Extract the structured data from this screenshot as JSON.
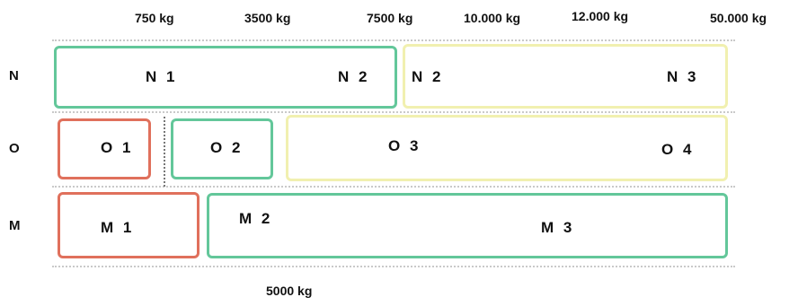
{
  "axis": {
    "top_ticks": [
      "750 kg",
      "3500 kg",
      "7500 kg",
      "10.000 kg",
      "12.000 kg",
      "50.000 kg"
    ],
    "bottom_tick": "5000 kg"
  },
  "rows": [
    {
      "label": "N",
      "classes": [
        "N 1",
        "N 2",
        "N 2",
        "N 3"
      ]
    },
    {
      "label": "O",
      "classes": [
        "O 1",
        "O 2",
        "O 3",
        "O 4"
      ]
    },
    {
      "label": "M",
      "classes": [
        "M 1",
        "M 2",
        "M 3"
      ]
    }
  ],
  "colors": {
    "green": "#63c79a",
    "red": "#e0705c",
    "yellow": "#f1f0b0"
  }
}
